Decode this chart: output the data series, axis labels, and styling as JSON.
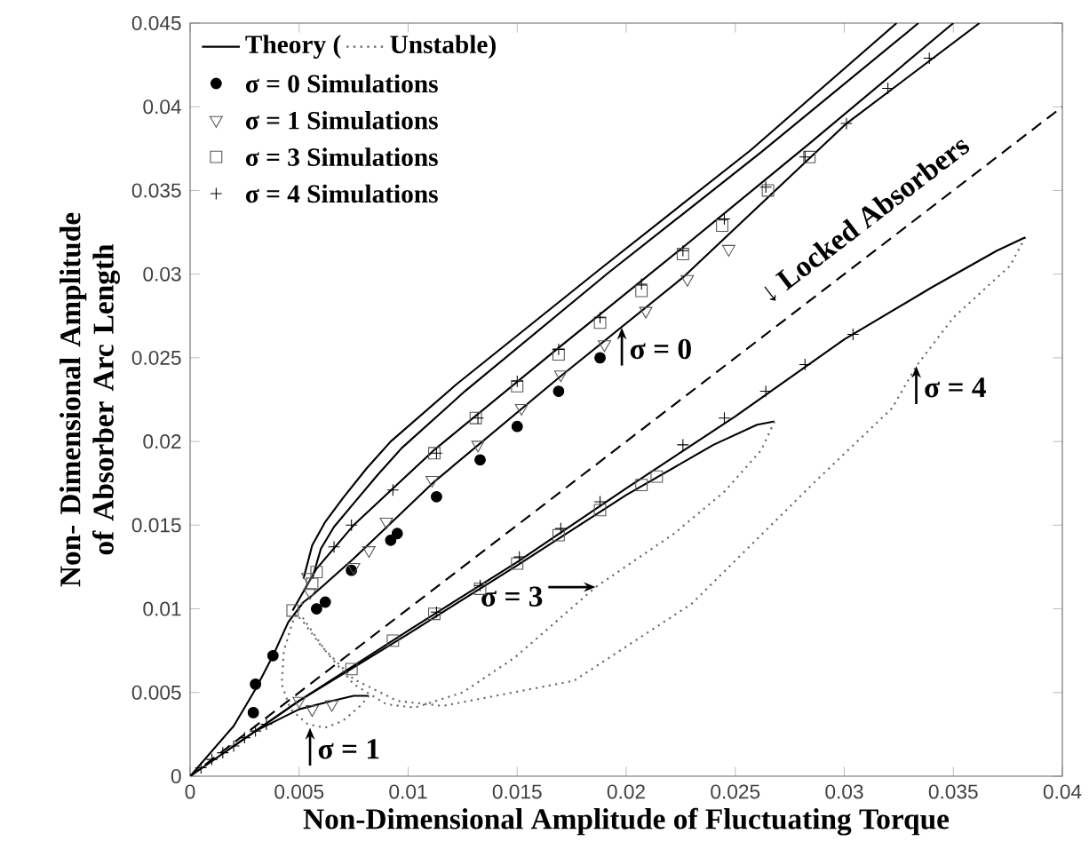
{
  "chart_data": {
    "type": "line",
    "xlabel": "Non-Dimensional Amplitude of Fluctuating Torque",
    "ylabel": "Non- Dimensional Amplitude of Absorber Arc Length",
    "xlim": [
      0,
      0.04
    ],
    "ylim": [
      0,
      0.045
    ],
    "xticks": [
      0,
      0.005,
      0.01,
      0.015,
      0.02,
      0.025,
      0.03,
      0.035,
      0.04
    ],
    "yticks": [
      0,
      0.005,
      0.01,
      0.015,
      0.02,
      0.025,
      0.03,
      0.035,
      0.04,
      0.045
    ],
    "grid": false,
    "legend": "top left",
    "series": [
      {
        "name": "Theory (",
        "type": "line",
        "line_style": "solid",
        "color": "#000000",
        "x": [
          0.0052,
          0.0056,
          0.0062,
          0.007,
          0.0081,
          0.0092,
          0.0122,
          0.0188,
          0.0257,
          0.0324
        ],
        "values": [
          0.0118,
          0.0138,
          0.0152,
          0.0166,
          0.0184,
          0.02,
          0.0234,
          0.0303,
          0.0374,
          0.045
        ]
      },
      {
        "name": "Unstable)",
        "line_style": "dotted",
        "color": "#666666",
        "x": [
          0.0383,
          0.0376,
          0.035,
          0.0333,
          0.0322,
          0.0285,
          0.023,
          0.0176,
          0.0116,
          0.0095,
          0.0075,
          0.006,
          0.0052,
          0.0047
        ],
        "values": [
          0.0322,
          0.0305,
          0.0274,
          0.0245,
          0.022,
          0.0174,
          0.0103,
          0.0057,
          0.0042,
          0.0045,
          0.0058,
          0.0078,
          0.0092,
          0.0099
        ]
      },
      {
        "type": "line",
        "line_style": "solid",
        "color": "#000000",
        "x": [
          0.0056,
          0.006,
          0.0066,
          0.0075,
          0.0086,
          0.0097,
          0.0126,
          0.0192,
          0.0262,
          0.0334
        ],
        "values": [
          0.0118,
          0.0136,
          0.0149,
          0.0163,
          0.018,
          0.0196,
          0.023,
          0.0301,
          0.0373,
          0.045
        ]
      },
      {
        "type": "line",
        "line_style": "solid",
        "color": "#000000",
        "x": [
          0.0047,
          0.0058,
          0.0075,
          0.0112,
          0.0169,
          0.0226,
          0.0284,
          0.035
        ],
        "values": [
          0.0099,
          0.0124,
          0.015,
          0.0195,
          0.0256,
          0.0316,
          0.0378,
          0.045
        ]
      },
      {
        "type": "line",
        "line_style": "solid",
        "color": "#000000",
        "x": [
          0.0056,
          0.0075,
          0.0112,
          0.0169,
          0.0226,
          0.0301,
          0.0362
        ],
        "values": [
          0.0108,
          0.013,
          0.0176,
          0.0238,
          0.0298,
          0.039,
          0.045
        ]
      },
      {
        "type": "line",
        "line_style": "solid",
        "color": "#000000",
        "x": [
          0,
          0.002,
          0.003,
          0.0038,
          0.0045,
          0.0052,
          0.0056
        ],
        "values": [
          0,
          0.003,
          0.0052,
          0.0072,
          0.0092,
          0.0104,
          0.0108
        ]
      },
      {
        "type": "line",
        "line_style": "solid",
        "color": "#000000",
        "x": [
          0,
          0.002,
          0.005,
          0.01,
          0.015,
          0.02,
          0.025,
          0.03,
          0.034,
          0.037,
          0.0383
        ],
        "values": [
          0,
          0.0018,
          0.0045,
          0.0087,
          0.0128,
          0.0172,
          0.0215,
          0.0261,
          0.0292,
          0.0314,
          0.0322
        ]
      },
      {
        "type": "line",
        "line_style": "solid",
        "color": "#000000",
        "x": [
          0.002,
          0.005,
          0.01,
          0.015,
          0.02,
          0.024,
          0.026,
          0.0268
        ],
        "values": [
          0.0018,
          0.0045,
          0.0085,
          0.0126,
          0.0168,
          0.0198,
          0.021,
          0.0212
        ]
      },
      {
        "type": "line",
        "line_style": "solid",
        "color": "#000000",
        "x": [
          0.003,
          0.005,
          0.0065,
          0.0075,
          0.0082
        ],
        "values": [
          0.0027,
          0.004,
          0.0045,
          0.0048,
          0.0048
        ]
      },
      {
        "line_style": "dotted",
        "color": "#666666",
        "x": [
          0.0268,
          0.0262,
          0.0245,
          0.0222,
          0.0186,
          0.0149,
          0.0125,
          0.0103,
          0.009,
          0.0075,
          0.0062,
          0.0051
        ],
        "values": [
          0.0212,
          0.0195,
          0.017,
          0.0145,
          0.0113,
          0.0071,
          0.005,
          0.0041,
          0.0043,
          0.0055,
          0.0075,
          0.0096
        ]
      },
      {
        "type": "line",
        "line_style": "dotted",
        "color": "#666666",
        "x": [
          0.0082,
          0.0078,
          0.007,
          0.0062,
          0.0054,
          0.0046,
          0.0042,
          0.0043,
          0.0047,
          0.0052
        ],
        "values": [
          0.0048,
          0.0042,
          0.0033,
          0.0029,
          0.0031,
          0.004,
          0.0055,
          0.0075,
          0.0092,
          0.0105
        ]
      },
      {
        "type": "line",
        "line_style": "dashed",
        "color": "#000000",
        "x": [
          0,
          0.04
        ],
        "values": [
          0,
          0.04
        ]
      },
      {
        "name": "σ = 0 Simulations",
        "type": "scatter",
        "marker": "circle",
        "color": "#000000",
        "x": [
          0.0029,
          0.003,
          0.0038,
          0.0058,
          0.0062,
          0.0074,
          0.0092,
          0.0095,
          0.0113,
          0.0133,
          0.015,
          0.0169,
          0.0188
        ],
        "values": [
          0.0038,
          0.0055,
          0.0072,
          0.01,
          0.0104,
          0.0123,
          0.0141,
          0.0145,
          0.0167,
          0.0189,
          0.0209,
          0.023,
          0.025
        ]
      },
      {
        "name": "σ = 1 Simulations",
        "type": "scatter",
        "marker": "triangle",
        "color": "#555555",
        "x": [
          0.0054,
          0.0055,
          0.005,
          0.0056,
          0.0065,
          0.0075,
          0.0082,
          0.009,
          0.0111,
          0.0132,
          0.0152,
          0.017,
          0.019,
          0.0209,
          0.0228,
          0.0247
        ],
        "values": [
          0.0119,
          0.011,
          0.0045,
          0.004,
          0.0043,
          0.0125,
          0.0135,
          0.0152,
          0.0177,
          0.0198,
          0.022,
          0.024,
          0.0258,
          0.0278,
          0.0297,
          0.0315
        ]
      },
      {
        "name": "σ = 3 Simulations",
        "type": "scatter",
        "marker": "square",
        "color": "#555555",
        "x": [
          0.0047,
          0.0056,
          0.0058,
          0.0112,
          0.0131,
          0.015,
          0.0169,
          0.0188,
          0.0207,
          0.0226,
          0.0244,
          0.0265,
          0.0284,
          0.0074,
          0.0093,
          0.0112,
          0.0133,
          0.015,
          0.0169,
          0.0188,
          0.0207,
          0.0214
        ],
        "values": [
          0.0099,
          0.0115,
          0.0122,
          0.0193,
          0.0214,
          0.0233,
          0.0252,
          0.0271,
          0.029,
          0.0312,
          0.0329,
          0.035,
          0.037,
          0.0064,
          0.0081,
          0.0097,
          0.0112,
          0.0127,
          0.0144,
          0.0159,
          0.0174,
          0.0179
        ]
      },
      {
        "name": "σ = 4 Simulations",
        "type": "scatter",
        "marker": "cross",
        "color": "#000000",
        "x": [
          0.0005,
          0.001,
          0.0015,
          0.002,
          0.0025,
          0.003,
          0.0035,
          0.0066,
          0.0074,
          0.0093,
          0.0113,
          0.0132,
          0.015,
          0.0169,
          0.0188,
          0.0207,
          0.0226,
          0.0245,
          0.0264,
          0.0282,
          0.0301,
          0.032,
          0.0339,
          0.0113,
          0.0133,
          0.0151,
          0.017,
          0.0188,
          0.0226,
          0.0245,
          0.0264,
          0.0282,
          0.0304
        ],
        "values": [
          0.0005,
          0.001,
          0.0014,
          0.0018,
          0.0023,
          0.0027,
          0.0031,
          0.0137,
          0.015,
          0.0171,
          0.0193,
          0.0214,
          0.0236,
          0.0255,
          0.0274,
          0.0294,
          0.0314,
          0.0333,
          0.0352,
          0.037,
          0.039,
          0.0411,
          0.0429,
          0.0098,
          0.0114,
          0.0131,
          0.0148,
          0.0164,
          0.0198,
          0.0214,
          0.023,
          0.0246,
          0.0264
        ]
      }
    ],
    "annotations": [
      {
        "text": "↓ Locked Absorbers",
        "x": 0.0272,
        "y": 0.0272
      },
      {
        "text": "σ = 0",
        "x": 0.0198,
        "y": 0.0268
      },
      {
        "text": "σ = 4",
        "x": 0.0333,
        "y": 0.0245
      },
      {
        "text": "σ = 3",
        "x": 0.0186,
        "y": 0.0113
      },
      {
        "text": "σ = 1",
        "x": 0.0055,
        "y": 0.0029
      }
    ]
  }
}
